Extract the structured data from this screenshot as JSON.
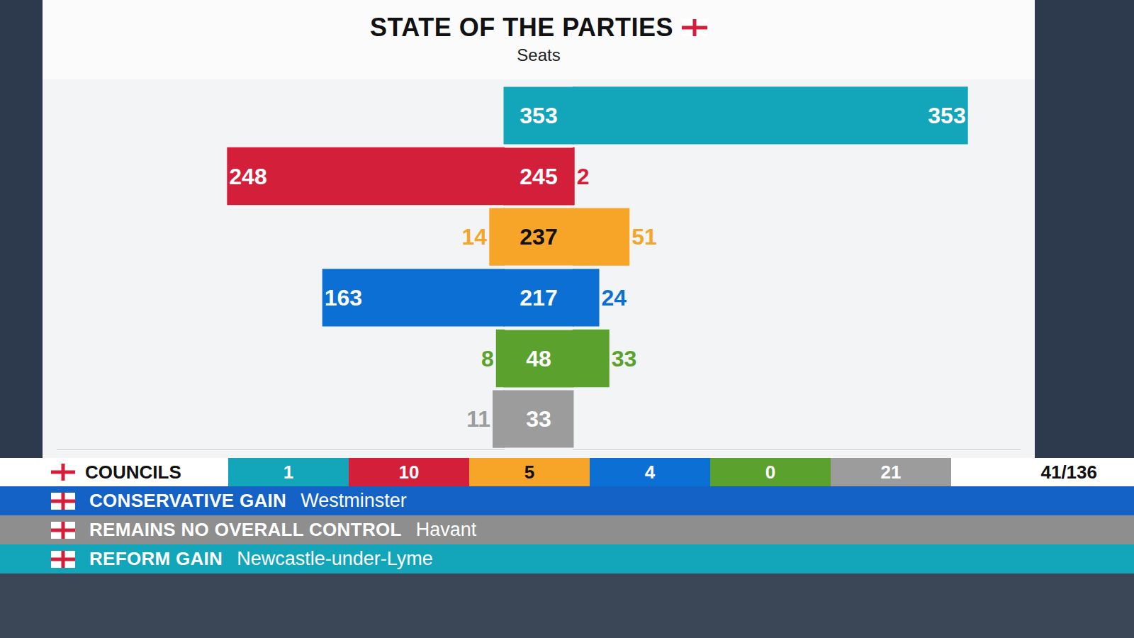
{
  "chart_data": {
    "type": "bar",
    "orientation": "horizontal",
    "title": "STATE OF THE PARTIES",
    "subtitle": "Seats",
    "categories": [
      null,
      null,
      null,
      null,
      null,
      null
    ],
    "colors": [
      "#13a5b9",
      "#d41f3a",
      "#f7a528",
      "#0b6fd3",
      "#5aa22d",
      "#9c9c9c"
    ],
    "series": [
      {
        "type": "bar",
        "values": [
          null,
          248,
          14,
          163,
          8,
          11
        ]
      },
      {
        "type": "text",
        "values": [
          353,
          245,
          237,
          217,
          48,
          33
        ]
      },
      {
        "type": "bar",
        "values": [
          353,
          2,
          51,
          24,
          33,
          null
        ]
      }
    ],
    "xlim": [
      0,
      400
    ],
    "data_labels": true,
    "tick_labels": false,
    "grid": false
  },
  "councils": {
    "label": "COUNCILS",
    "values": [
      1,
      10,
      5,
      4,
      0,
      21
    ],
    "declared": "41/136"
  },
  "ticker": [
    {
      "head": "CONSERVATIVE GAIN",
      "place": "Westminster",
      "color": "#1462c6"
    },
    {
      "head": "REMAINS NO OVERALL CONTROL",
      "place": "Havant",
      "color": "#8e8e8e"
    },
    {
      "head": "REFORM GAIN",
      "place": "Newcastle-under-Lyme",
      "color": "#13a5b9"
    }
  ]
}
